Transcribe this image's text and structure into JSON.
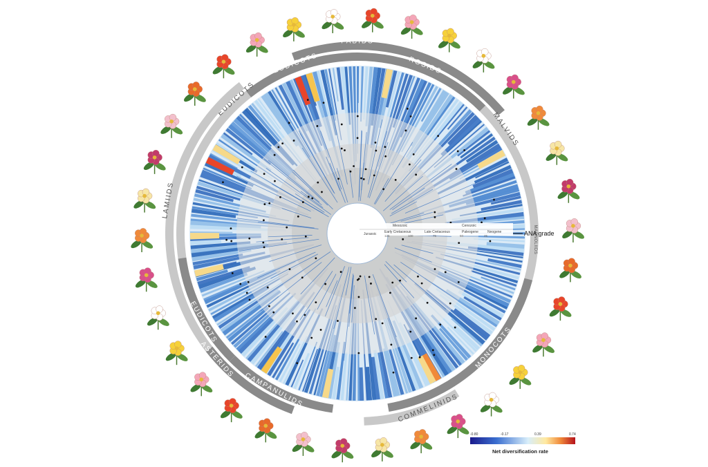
{
  "clades": {
    "fabids": "FABIDS",
    "rosids": "ROSIDS",
    "eudicots_top": "EUDICOTS",
    "malvids": "MALVIDS",
    "eudicots_left": "EUDICOTS",
    "lamiids": "LAMIIDS",
    "eudicots_lower": "EUDICOTS",
    "asterids": "ASTERIDS",
    "campanulids": "CAMPANULIDS",
    "monocots": "MONOCOTS",
    "commelinids": "COMMELINIDS",
    "magnoliids": "MAGNOLIIDS"
  },
  "timescale": {
    "eras": [
      "Jurassic",
      "Mesozoic",
      "Cenozoic"
    ],
    "periods": [
      "Early Cretaceous",
      "Late Cretaceous",
      "Paleogene",
      "Neogene"
    ],
    "ticks": [
      "125",
      "100",
      "75",
      "50",
      "25"
    ]
  },
  "ana_grade_label": "ANA grade",
  "legend": {
    "title": "Net diversification rate",
    "ticks": [
      "-0.80",
      "-0.17",
      "0.39",
      "0.74"
    ],
    "colors": [
      "#1a1a8c",
      "#3b6fd0",
      "#bfe3f5",
      "#ffe9a0",
      "#f08a3a",
      "#b5121b"
    ]
  },
  "colors": {
    "ring_dark": "#8a8a8a",
    "ring_light": "#c8c8c8",
    "branch_blue": "#3b78c4",
    "branch_light": "#a9d3ee"
  }
}
